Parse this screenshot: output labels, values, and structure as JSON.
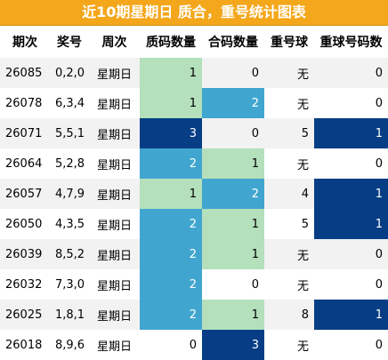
{
  "title": "近10期星期日 质合，重号统计图表",
  "headers": [
    "期次",
    "奖号",
    "周次",
    "质码数量",
    "合码数量",
    "重号球",
    "重球号码数"
  ],
  "colors": {
    "title_bg": "#f4a71b",
    "level_0": "#ffffff",
    "level_1": "#b4e0bb",
    "level_2": "#41a6cf",
    "level_3": "#063d85"
  },
  "rows": [
    {
      "period": "26085",
      "numbers": "0,2,0",
      "weekday": "星期日",
      "prime": "1",
      "composite": "0",
      "repeat": "无",
      "repeat_count": "0"
    },
    {
      "period": "26078",
      "numbers": "6,3,4",
      "weekday": "星期日",
      "prime": "1",
      "composite": "2",
      "repeat": "无",
      "repeat_count": "0"
    },
    {
      "period": "26071",
      "numbers": "5,5,1",
      "weekday": "星期日",
      "prime": "3",
      "composite": "0",
      "repeat": "5",
      "repeat_count": "1"
    },
    {
      "period": "26064",
      "numbers": "5,2,8",
      "weekday": "星期日",
      "prime": "2",
      "composite": "1",
      "repeat": "无",
      "repeat_count": "0"
    },
    {
      "period": "26057",
      "numbers": "4,7,9",
      "weekday": "星期日",
      "prime": "1",
      "composite": "2",
      "repeat": "4",
      "repeat_count": "1"
    },
    {
      "period": "26050",
      "numbers": "4,3,5",
      "weekday": "星期日",
      "prime": "2",
      "composite": "1",
      "repeat": "5",
      "repeat_count": "1"
    },
    {
      "period": "26039",
      "numbers": "8,5,2",
      "weekday": "星期日",
      "prime": "2",
      "composite": "1",
      "repeat": "无",
      "repeat_count": "0"
    },
    {
      "period": "26032",
      "numbers": "7,3,0",
      "weekday": "星期日",
      "prime": "2",
      "composite": "0",
      "repeat": "无",
      "repeat_count": "0"
    },
    {
      "period": "26025",
      "numbers": "1,8,1",
      "weekday": "星期日",
      "prime": "2",
      "composite": "1",
      "repeat": "8",
      "repeat_count": "1"
    },
    {
      "period": "26018",
      "numbers": "8,9,6",
      "weekday": "星期日",
      "prime": "0",
      "composite": "3",
      "repeat": "无",
      "repeat_count": "0"
    }
  ]
}
